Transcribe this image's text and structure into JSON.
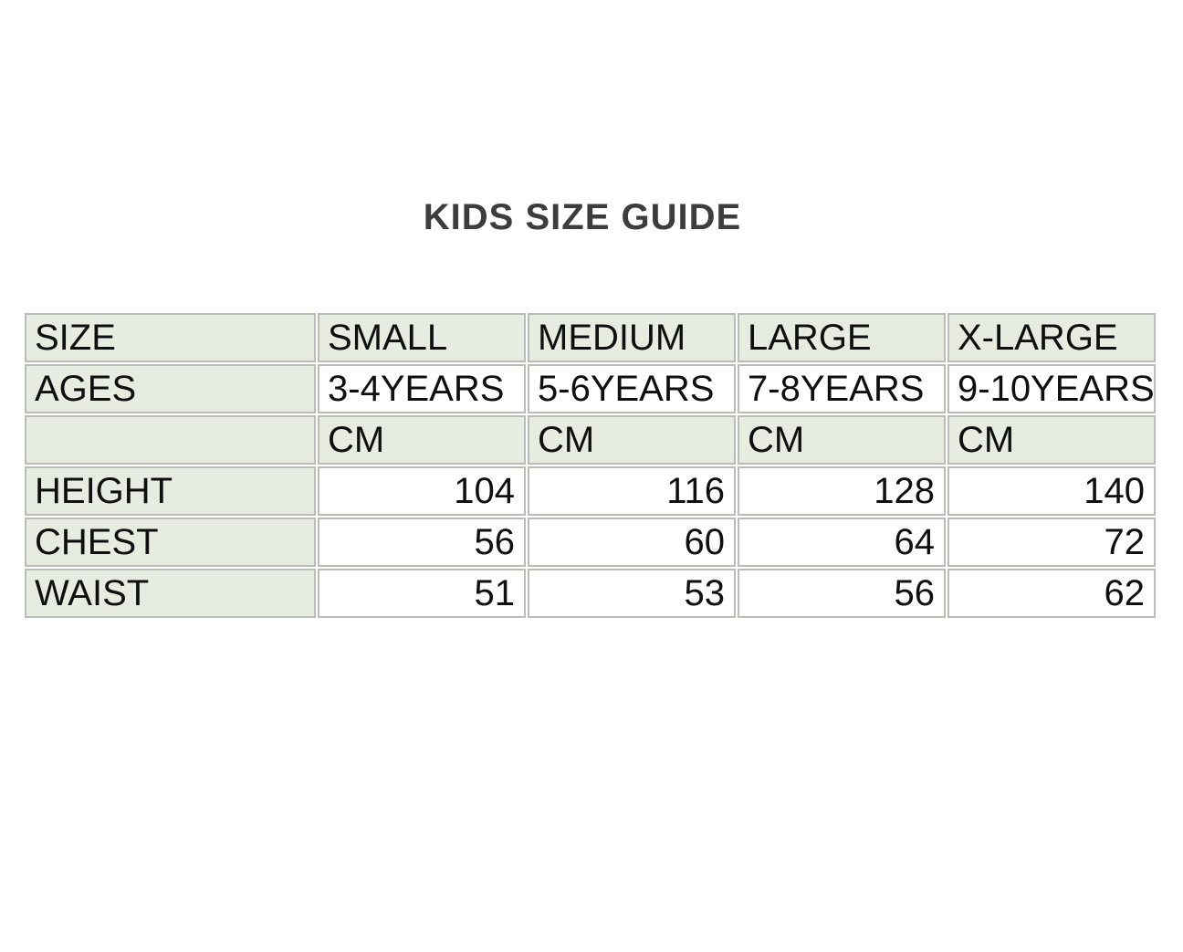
{
  "page": {
    "title": "KIDS SIZE GUIDE"
  },
  "colors": {
    "background": "#ffffff",
    "cell_green": "#e6ece0",
    "grid_border": "#b9bcb7",
    "title_text": "#3d3d3d",
    "cell_text": "#0f0f0f"
  },
  "size_table": {
    "rows": [
      {
        "cells": [
          "SIZE",
          "SMALL",
          "MEDIUM",
          "LARGE",
          "X-LARGE"
        ]
      },
      {
        "cells": [
          "AGES",
          "3-4YEARS",
          "5-6YEARS",
          "7-8YEARS",
          "9-10YEARS"
        ]
      },
      {
        "cells": [
          "",
          "CM",
          "CM",
          "CM",
          "CM"
        ]
      },
      {
        "cells": [
          "HEIGHT",
          "104",
          "116",
          "128",
          "140"
        ]
      },
      {
        "cells": [
          "CHEST",
          "56",
          "60",
          "64",
          "72"
        ]
      },
      {
        "cells": [
          "WAIST",
          "51",
          "53",
          "56",
          "62"
        ]
      }
    ]
  },
  "chart_data": {
    "type": "table",
    "title": "KIDS SIZE GUIDE",
    "columns": [
      "SIZE",
      "SMALL",
      "MEDIUM",
      "LARGE",
      "X-LARGE"
    ],
    "ages": [
      "3-4YEARS",
      "5-6YEARS",
      "7-8YEARS",
      "9-10YEARS"
    ],
    "unit": "CM",
    "series": [
      {
        "name": "HEIGHT",
        "values": [
          104,
          116,
          128,
          140
        ]
      },
      {
        "name": "CHEST",
        "values": [
          56,
          60,
          64,
          72
        ]
      },
      {
        "name": "WAIST",
        "values": [
          51,
          53,
          56,
          62
        ]
      }
    ]
  }
}
